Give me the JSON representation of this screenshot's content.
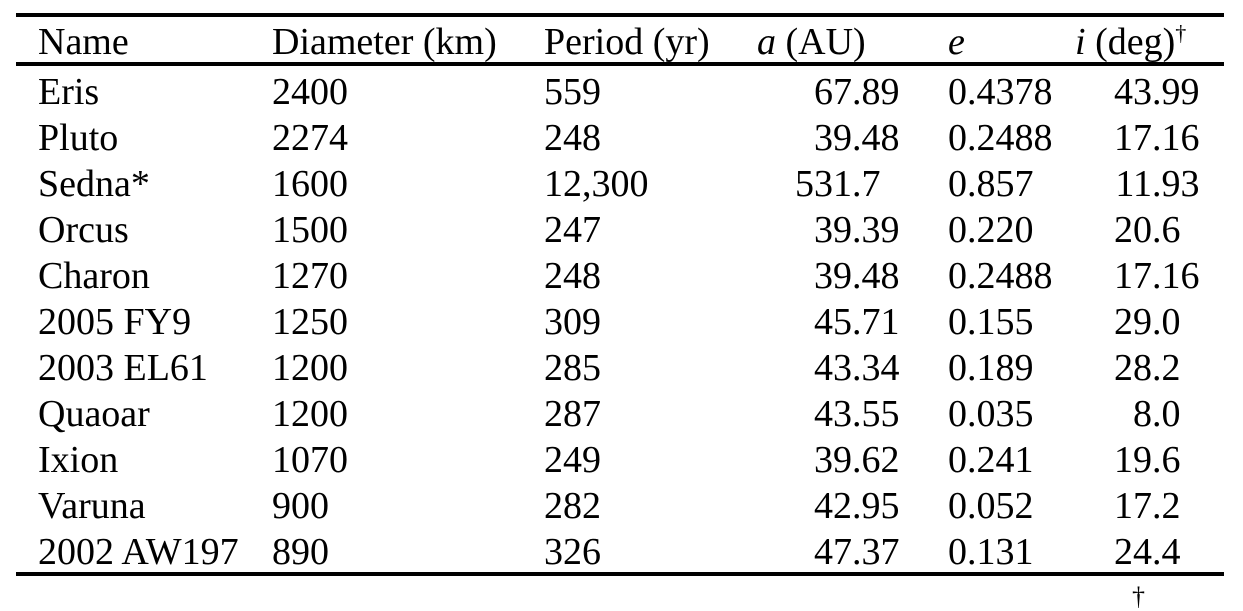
{
  "page": {
    "background": "#ffffff",
    "text_color": "#000000",
    "rule_color": "#000000"
  },
  "table": {
    "footnote_marker": "†",
    "columns": [
      {
        "key": "name",
        "align": "left",
        "header": {
          "var": "",
          "label": "Name",
          "sup": ""
        }
      },
      {
        "key": "diameter",
        "align": "left",
        "header": {
          "var": "",
          "label": "Diameter (km)",
          "sup": ""
        }
      },
      {
        "key": "period",
        "align": "left",
        "header": {
          "var": "",
          "label": "Period (yr)",
          "sup": ""
        }
      },
      {
        "key": "a",
        "align": "decimal",
        "header": {
          "var": "a",
          "label": " (AU)",
          "sup": ""
        }
      },
      {
        "key": "e",
        "align": "left",
        "header": {
          "var": "e",
          "label": "",
          "sup": ""
        }
      },
      {
        "key": "i",
        "align": "decimal",
        "header": {
          "var": "i",
          "label": " (deg)",
          "sup": "†"
        }
      }
    ],
    "rows": [
      {
        "name": "Eris",
        "diameter": "2400",
        "period": "559",
        "a": "67.89",
        "e": "0.4378",
        "i": "43.99"
      },
      {
        "name": "Pluto",
        "diameter": "2274",
        "period": "248",
        "a": "39.48",
        "e": "0.2488",
        "i": "17.16"
      },
      {
        "name": "Sedna*",
        "diameter": "1600",
        "period": "12,300",
        "a": "531.7",
        "e": "0.857",
        "i": "11.93"
      },
      {
        "name": "Orcus",
        "diameter": "1500",
        "period": "247",
        "a": "39.39",
        "e": "0.220",
        "i": "20.6"
      },
      {
        "name": "Charon",
        "diameter": "1270",
        "period": "248",
        "a": "39.48",
        "e": "0.2488",
        "i": "17.16"
      },
      {
        "name": "2005 FY9",
        "diameter": "1250",
        "period": "309",
        "a": "45.71",
        "e": "0.155",
        "i": "29.0"
      },
      {
        "name": "2003 EL61",
        "diameter": "1200",
        "period": "285",
        "a": "43.34",
        "e": "0.189",
        "i": "28.2"
      },
      {
        "name": "Quaoar",
        "diameter": "1200",
        "period": "287",
        "a": "43.55",
        "e": "0.035",
        "i": "8.0"
      },
      {
        "name": "Ixion",
        "diameter": "1070",
        "period": "249",
        "a": "39.62",
        "e": "0.241",
        "i": "19.6"
      },
      {
        "name": "Varuna",
        "diameter": "900",
        "period": "282",
        "a": "42.95",
        "e": "0.052",
        "i": "17.2"
      },
      {
        "name": "2002 AW197",
        "diameter": "890",
        "period": "326",
        "a": "47.37",
        "e": "0.131",
        "i": "24.4"
      }
    ]
  },
  "chart_data": {
    "type": "table",
    "title": "",
    "columns": [
      "Name",
      "Diameter (km)",
      "Period (yr)",
      "a (AU)",
      "e",
      "i (deg)†"
    ],
    "rows": [
      [
        "Eris",
        "2400",
        "559",
        "67.89",
        "0.4378",
        "43.99"
      ],
      [
        "Pluto",
        "2274",
        "248",
        "39.48",
        "0.2488",
        "17.16"
      ],
      [
        "Sedna*",
        "1600",
        "12,300",
        "531.7",
        "0.857",
        "11.93"
      ],
      [
        "Orcus",
        "1500",
        "247",
        "39.39",
        "0.220",
        "20.6"
      ],
      [
        "Charon",
        "1270",
        "248",
        "39.48",
        "0.2488",
        "17.16"
      ],
      [
        "2005 FY9",
        "1250",
        "309",
        "45.71",
        "0.155",
        "29.0"
      ],
      [
        "2003 EL61",
        "1200",
        "285",
        "43.34",
        "0.189",
        "28.2"
      ],
      [
        "Quaoar",
        "1200",
        "287",
        "43.55",
        "0.035",
        "8.0"
      ],
      [
        "Ixion",
        "1070",
        "249",
        "39.62",
        "0.241",
        "19.6"
      ],
      [
        "Varuna",
        "900",
        "282",
        "42.95",
        "0.052",
        "17.2"
      ],
      [
        "2002 AW197",
        "890",
        "326",
        "47.37",
        "0.131",
        "24.4"
      ]
    ]
  }
}
